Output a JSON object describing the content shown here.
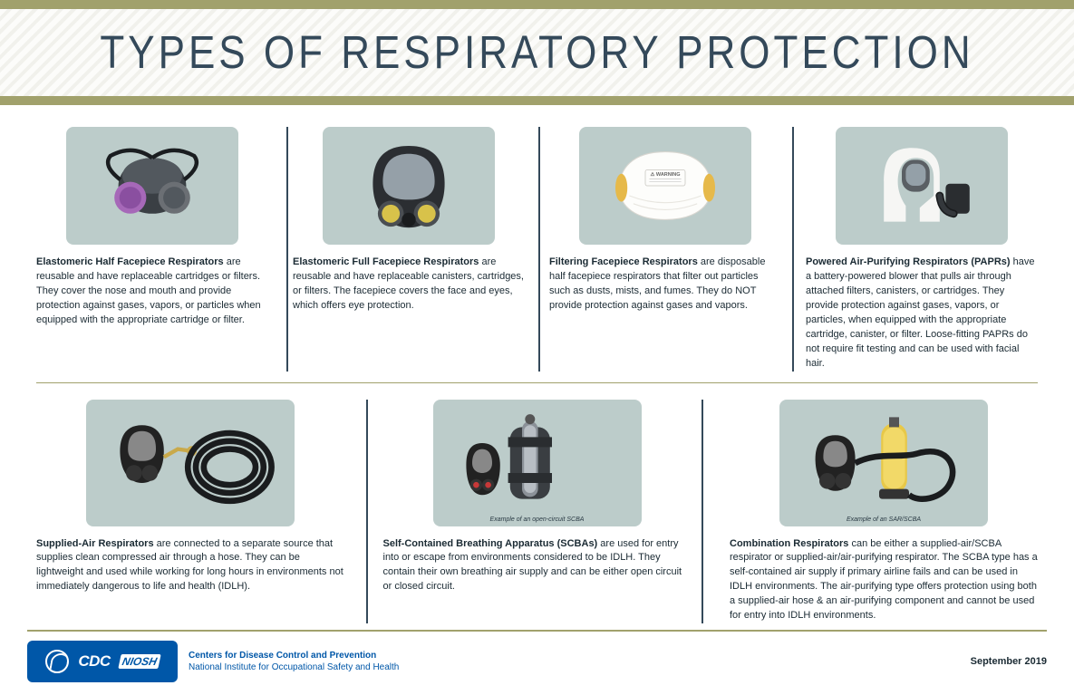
{
  "title": "TYPES OF RESPIRATORY PROTECTION",
  "colors": {
    "olive": "#a1a16c",
    "navy": "#34495a",
    "card_bg": "#bcccca",
    "cdc_blue": "#0057a8"
  },
  "row1": [
    {
      "name": "elastomeric-half",
      "icon": "half_mask",
      "title": "Elastomeric Half Facepiece Respirators",
      "body": " are reusable and have replaceable cartridges or filters. They cover the nose and mouth and provide protection against gases, vapors, or particles when equipped with the appropriate cartridge or filter."
    },
    {
      "name": "elastomeric-full",
      "icon": "full_mask",
      "title": "Elastomeric Full Facepiece Respirators",
      "body": " are reusable and have replaceable canisters, cartridges, or filters. The facepiece covers the face and eyes, which offers eye protection."
    },
    {
      "name": "filtering-facepiece",
      "icon": "n95",
      "title": "Filtering Facepiece Respirators",
      "body": " are disposable half facepiece respirators that filter out particles such as dusts, mists, and fumes. They do NOT provide protection against gases and vapors."
    },
    {
      "name": "papr",
      "icon": "papr",
      "title": "Powered Air-Purifying Respirators (PAPRs)",
      "body": " have a battery-powered blower that pulls air through attached filters, canisters, or cartridges. They provide protection against gases, vapors, or particles, when equipped with the appropriate cartridge, canister, or filter. Loose-fitting PAPRs do not require fit testing and can be used with facial hair."
    }
  ],
  "row2": [
    {
      "name": "supplied-air",
      "icon": "sar",
      "caption": "",
      "title": "Supplied-Air Respirators",
      "body": " are connected to a separate source that supplies clean compressed air through a hose. They can be lightweight and used while working for long hours in environments not immediately dangerous to life and health (IDLH)."
    },
    {
      "name": "scba",
      "icon": "scba",
      "caption": "Example of an open-circuit SCBA",
      "title": "Self-Contained Breathing Apparatus (SCBAs)",
      "body": " are used for entry into or escape from environments considered to be IDLH. They contain their own breathing air supply and can be either open circuit or closed circuit."
    },
    {
      "name": "combination",
      "icon": "combo",
      "caption": "Example of an SAR/SCBA",
      "title": "Combination Respirators",
      "body": " can be either a supplied-air/SCBA respirator or supplied-air/air-purifying respirator. The SCBA type has a self-contained air supply if primary airline fails and can be used in IDLH environments. The air-purifying type offers protection using both a supplied-air hose & an air-purifying component and cannot be used for entry into IDLH environments."
    }
  ],
  "footer": {
    "cdc": "CDC",
    "niosh": "NIOSH",
    "org1": "Centers for Disease Control and Prevention",
    "org2": "National Institute for Occupational Safety and Health",
    "date": "September 2019"
  }
}
